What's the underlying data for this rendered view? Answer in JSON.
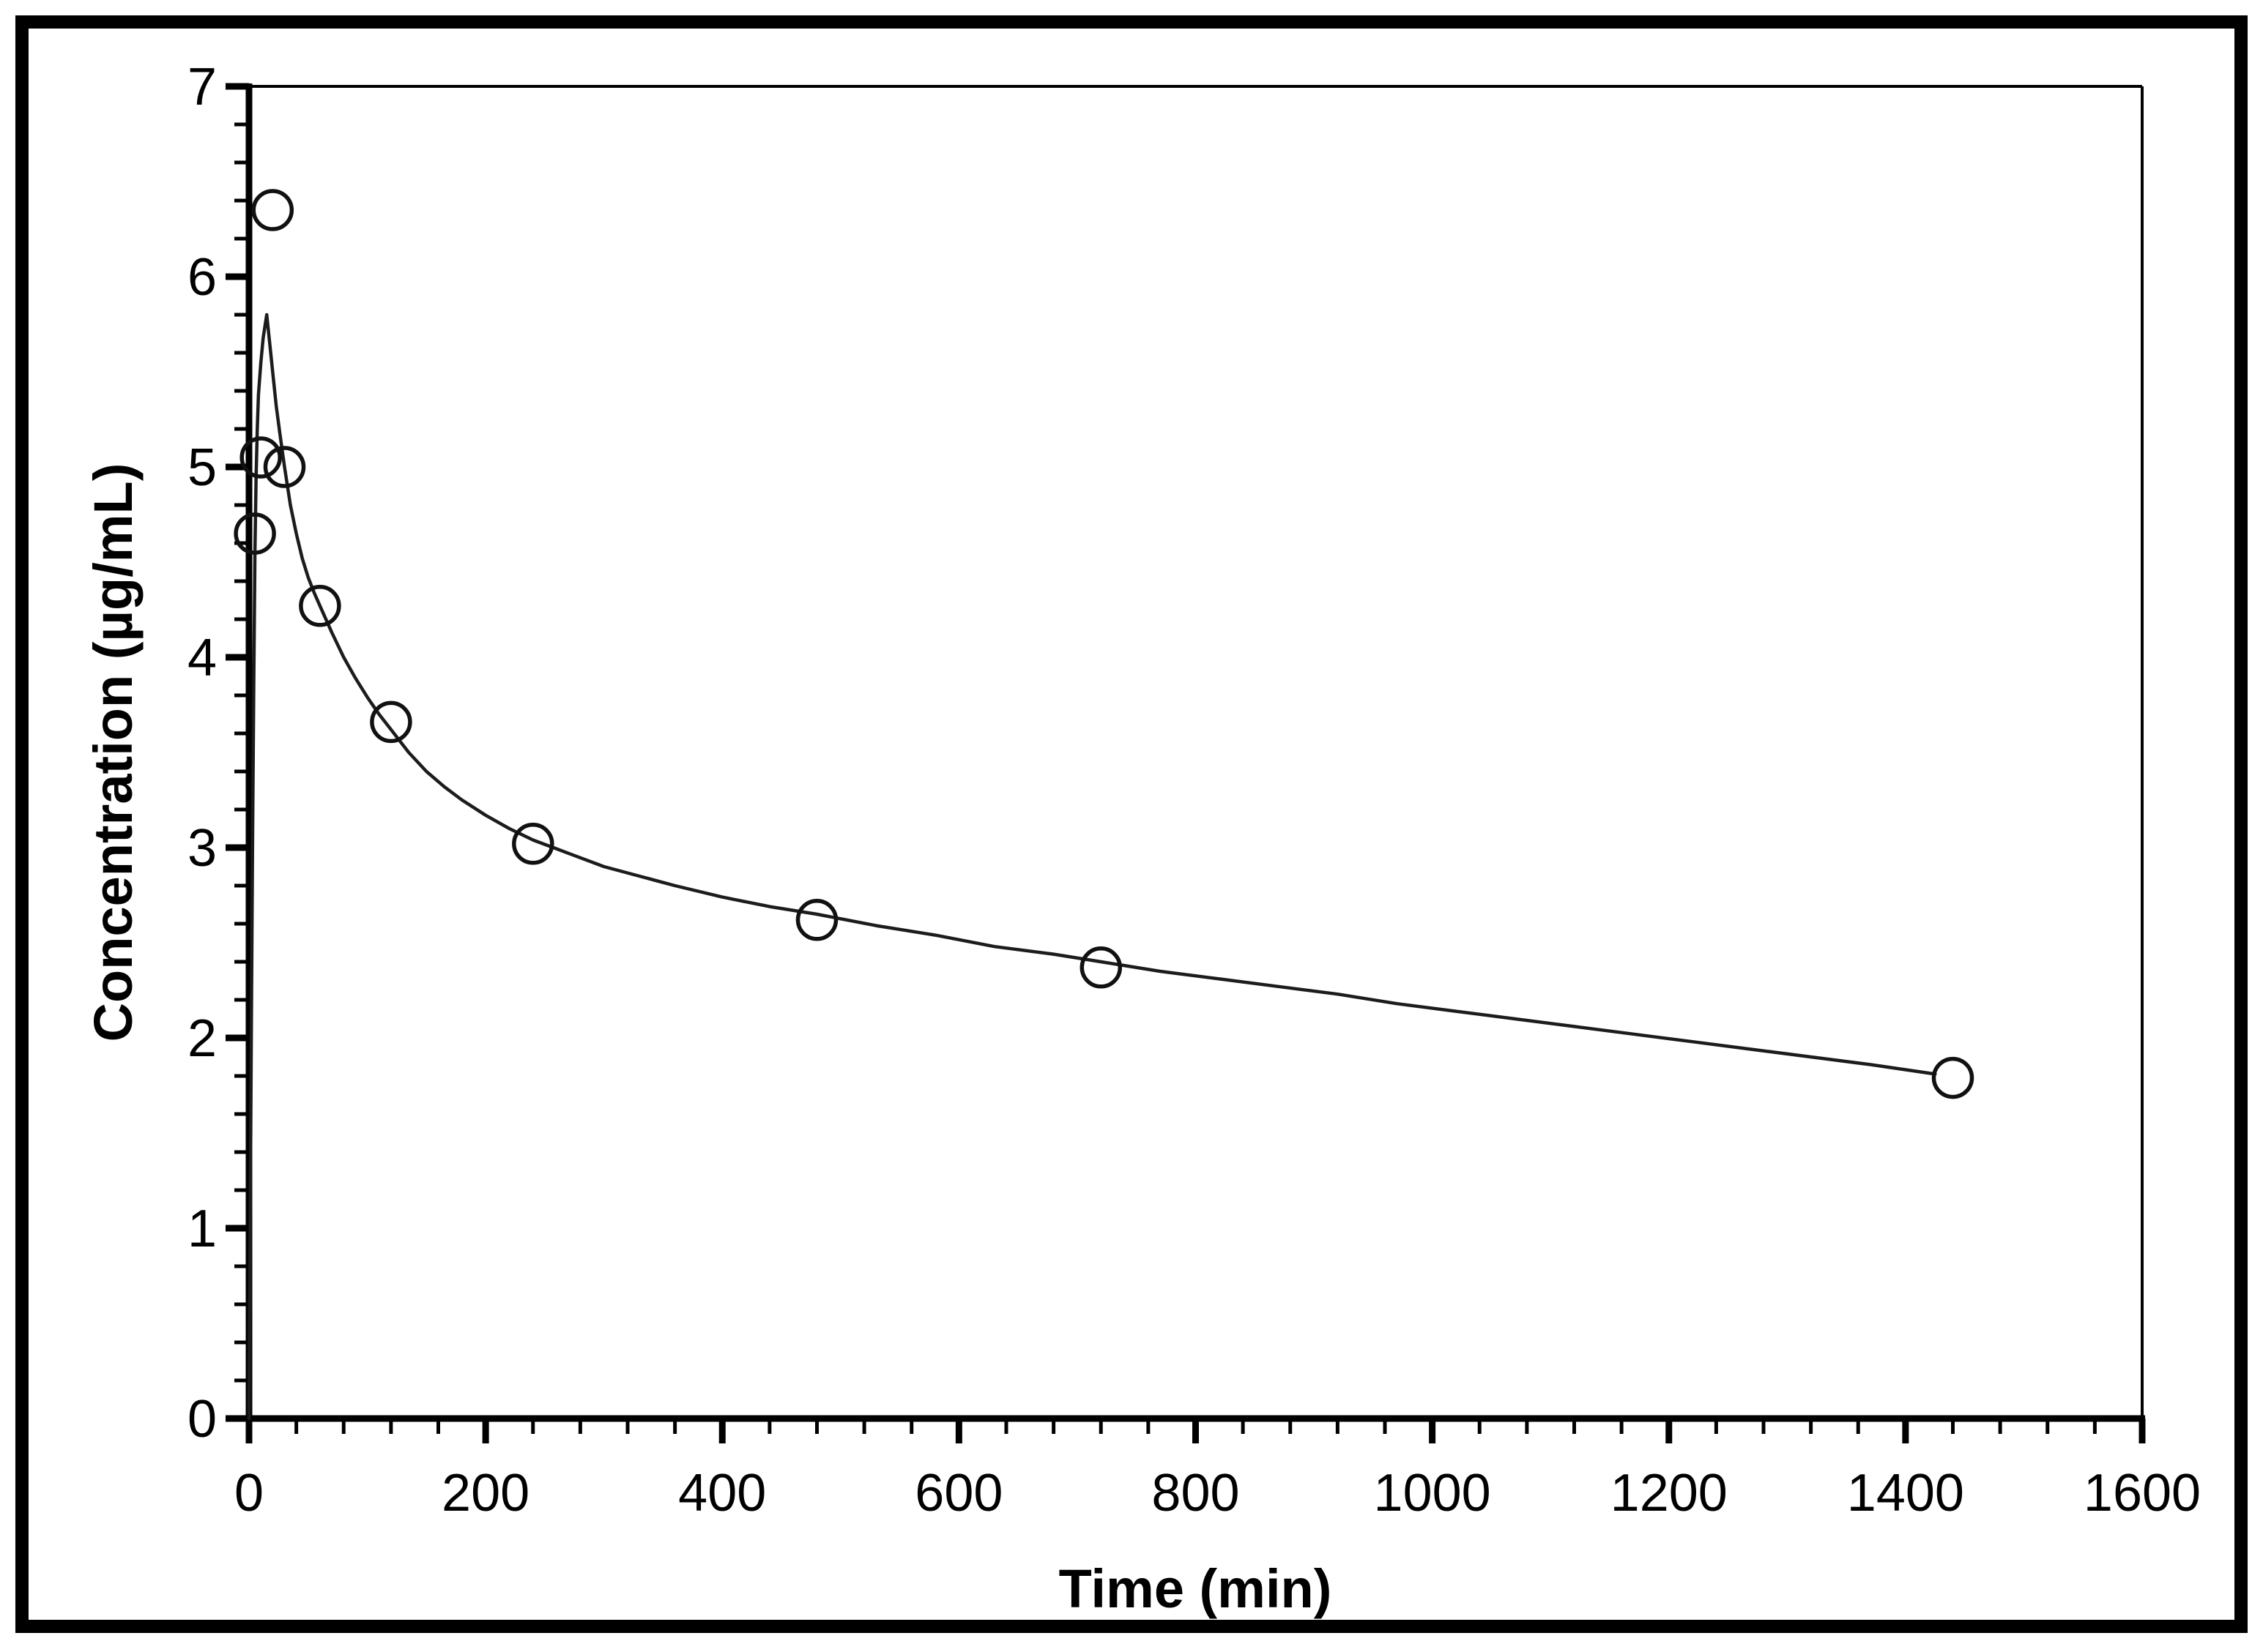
{
  "figure": {
    "background_color": "#ffffff",
    "border_color": "#000000",
    "line_color": "#1c1c1c",
    "marker_color": "#111111"
  },
  "chart_data": {
    "type": "scatter",
    "title": "",
    "xlabel": "Time (min)",
    "ylabel": "Concentration (µg/mL)",
    "xlim": [
      0,
      1600
    ],
    "ylim": [
      0,
      7
    ],
    "x_major_ticks": [
      0,
      200,
      400,
      600,
      800,
      1000,
      1200,
      1400,
      1600
    ],
    "x_minor_step": 40,
    "y_major_ticks": [
      0,
      1,
      2,
      3,
      4,
      5,
      6,
      7
    ],
    "y_minor_step": 0.2,
    "grid": false,
    "legend": "none",
    "series": [
      {
        "name": "observed-concentrations",
        "type": "scatter",
        "marker": "open-circle",
        "points": [
          [
            5,
            4.65
          ],
          [
            10,
            5.05
          ],
          [
            20,
            6.35
          ],
          [
            30,
            5.0
          ],
          [
            60,
            4.27
          ],
          [
            120,
            3.66
          ],
          [
            240,
            3.02
          ],
          [
            480,
            2.62
          ],
          [
            720,
            2.37
          ],
          [
            1440,
            1.79
          ]
        ]
      },
      {
        "name": "fitted-curve",
        "type": "line",
        "points": [
          [
            0,
            0
          ],
          [
            1,
            1.0
          ],
          [
            2,
            2.05
          ],
          [
            3,
            3.0
          ],
          [
            4,
            3.85
          ],
          [
            5,
            4.55
          ],
          [
            6,
            4.95
          ],
          [
            7,
            5.2
          ],
          [
            8,
            5.38
          ],
          [
            10,
            5.55
          ],
          [
            12,
            5.68
          ],
          [
            15,
            5.8
          ],
          [
            18,
            5.62
          ],
          [
            20,
            5.5
          ],
          [
            23,
            5.32
          ],
          [
            26,
            5.18
          ],
          [
            30,
            5.0
          ],
          [
            35,
            4.8
          ],
          [
            40,
            4.65
          ],
          [
            45,
            4.52
          ],
          [
            50,
            4.42
          ],
          [
            55,
            4.34
          ],
          [
            60,
            4.27
          ],
          [
            70,
            4.13
          ],
          [
            80,
            4.0
          ],
          [
            90,
            3.89
          ],
          [
            100,
            3.79
          ],
          [
            110,
            3.7
          ],
          [
            120,
            3.62
          ],
          [
            135,
            3.5
          ],
          [
            150,
            3.4
          ],
          [
            165,
            3.32
          ],
          [
            180,
            3.25
          ],
          [
            200,
            3.17
          ],
          [
            220,
            3.1
          ],
          [
            240,
            3.04
          ],
          [
            270,
            2.97
          ],
          [
            300,
            2.9
          ],
          [
            330,
            2.85
          ],
          [
            360,
            2.8
          ],
          [
            400,
            2.74
          ],
          [
            440,
            2.69
          ],
          [
            480,
            2.65
          ],
          [
            530,
            2.59
          ],
          [
            580,
            2.54
          ],
          [
            630,
            2.48
          ],
          [
            680,
            2.44
          ],
          [
            720,
            2.4
          ],
          [
            770,
            2.35
          ],
          [
            820,
            2.31
          ],
          [
            870,
            2.27
          ],
          [
            920,
            2.23
          ],
          [
            970,
            2.18
          ],
          [
            1020,
            2.14
          ],
          [
            1070,
            2.1
          ],
          [
            1120,
            2.06
          ],
          [
            1170,
            2.02
          ],
          [
            1220,
            1.98
          ],
          [
            1270,
            1.94
          ],
          [
            1320,
            1.9
          ],
          [
            1370,
            1.86
          ],
          [
            1425,
            1.81
          ]
        ]
      }
    ]
  }
}
